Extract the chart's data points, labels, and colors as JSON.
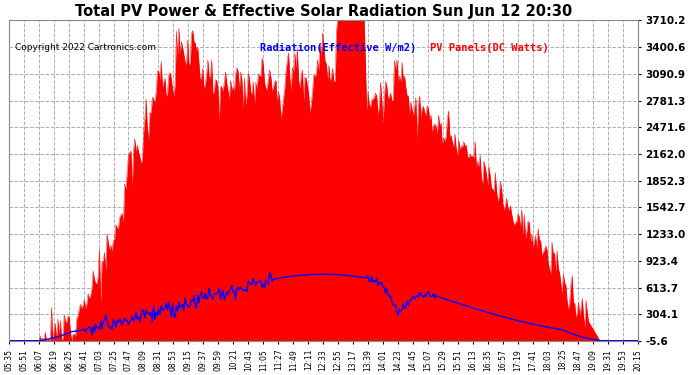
{
  "title": "Total PV Power & Effective Solar Radiation Sun Jun 12 20:30",
  "copyright": "Copyright 2022 Cartronics.com",
  "legend_radiation": "Radiation(Effective W/m2)",
  "legend_pv": "PV Panels(DC Watts)",
  "y_min": -5.6,
  "y_max": 3710.2,
  "y_ticks": [
    -5.6,
    304.1,
    613.7,
    923.4,
    1233.0,
    1542.7,
    1852.3,
    2162.0,
    2471.6,
    2781.3,
    3090.9,
    3400.6,
    3710.2
  ],
  "background_color": "#ffffff",
  "grid_color": "#b0b0b0",
  "fill_color": "#ff0000",
  "line_color_radiation": "#0000ff",
  "line_color_pv": "#ff0000",
  "x_labels": [
    "05:35",
    "05:51",
    "06:07",
    "06:19",
    "06:25",
    "06:41",
    "07:03",
    "07:25",
    "07:47",
    "08:09",
    "08:31",
    "08:53",
    "09:15",
    "09:37",
    "09:59",
    "10:21",
    "10:43",
    "11:05",
    "11:27",
    "11:49",
    "12:11",
    "12:33",
    "12:55",
    "13:17",
    "13:39",
    "14:01",
    "14:23",
    "14:45",
    "15:07",
    "15:29",
    "15:51",
    "16:13",
    "16:35",
    "16:57",
    "17:19",
    "17:41",
    "18:03",
    "18:25",
    "18:47",
    "19:09",
    "19:31",
    "19:53",
    "20:15"
  ],
  "figsize": [
    6.9,
    3.75
  ],
  "dpi": 100
}
